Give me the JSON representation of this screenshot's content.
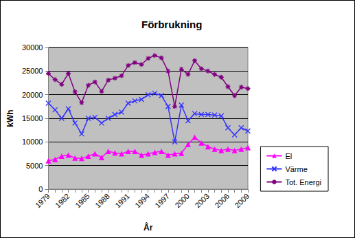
{
  "chart_data": {
    "type": "line",
    "title": "Förbrukning",
    "x_label": "År",
    "y_label": "kWh",
    "categories": [
      "1979",
      null,
      null,
      "1982",
      null,
      null,
      "1985",
      null,
      null,
      "1988",
      null,
      null,
      "1991",
      null,
      null,
      "1994",
      null,
      null,
      "1997",
      null,
      null,
      "2000",
      null,
      null,
      "2003",
      null,
      null,
      "2006",
      null,
      null,
      "2009"
    ],
    "series": [
      {
        "name": "El",
        "color": "#ff00ff",
        "marker": "triangle",
        "values": [
          6000,
          6300,
          7000,
          7200,
          6600,
          6500,
          7000,
          7500,
          6700,
          8000,
          7700,
          7500,
          8000,
          8000,
          7200,
          7500,
          7800,
          8000,
          7200,
          7500,
          7600,
          9500,
          11000,
          9800,
          9000,
          8500,
          8200,
          8500,
          8200,
          8500,
          8800
        ]
      },
      {
        "name": "Värme",
        "color": "#3333ff",
        "marker": "x",
        "values": [
          18200,
          16800,
          15000,
          17000,
          14000,
          11700,
          15000,
          15200,
          14000,
          15000,
          15800,
          16300,
          18200,
          18700,
          19000,
          20000,
          20300,
          19800,
          17500,
          10000,
          17800,
          14500,
          16000,
          15800,
          15800,
          15700,
          15500,
          13000,
          11500,
          13000,
          12300
        ]
      },
      {
        "name": "Tot. Energi",
        "color": "#800080",
        "marker": "star",
        "values": [
          24500,
          23200,
          22200,
          24500,
          20600,
          18300,
          22000,
          22700,
          20700,
          23100,
          23500,
          24000,
          26200,
          26800,
          26400,
          27700,
          28300,
          27800,
          25000,
          17500,
          25400,
          24300,
          27200,
          25500,
          25000,
          24300,
          23700,
          21700,
          19800,
          21600,
          21300
        ]
      }
    ],
    "ylim": [
      0,
      30000
    ],
    "yticks": [
      0,
      5000,
      10000,
      15000,
      20000,
      25000,
      30000
    ],
    "grid": true,
    "legend": "right"
  }
}
